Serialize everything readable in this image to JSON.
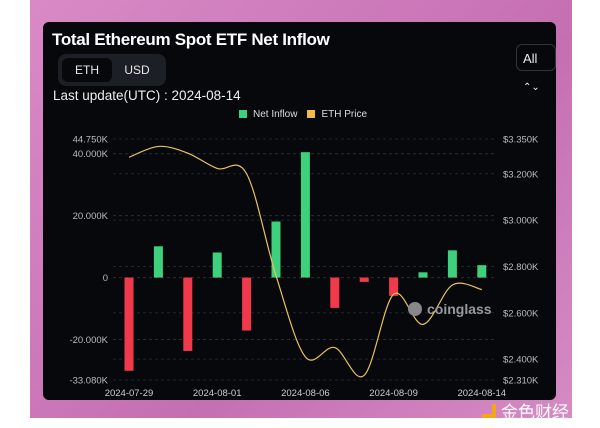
{
  "title": "Total Ethereum Spot ETF Net Inflow",
  "toggle": {
    "eth": "ETH",
    "usd": "USD",
    "selected": "ETH"
  },
  "last_update": "Last update(UTC) : 2024-08-14",
  "range_select": {
    "value": "All",
    "icon": "chevron-up-down-icon"
  },
  "watermark": {
    "chart": "coinglass",
    "site": "金色财经"
  },
  "colors": {
    "inflow_pos": "#3ed07c",
    "inflow_neg": "#f0394b",
    "price": "#e8c35a",
    "bg": "#07080b"
  },
  "chart_data": {
    "type": "bar",
    "title": "Total Ethereum Spot ETF Net Inflow",
    "legend": [
      {
        "name": "Net Inflow",
        "color": "#3ed07c"
      },
      {
        "name": "ETH Price",
        "color": "#f2b94a"
      }
    ],
    "legend_position": "top-center",
    "categories": [
      "2024-07-29",
      "2024-07-30",
      "2024-07-31",
      "2024-08-01",
      "2024-08-02",
      "2024-08-05",
      "2024-08-06",
      "2024-08-07",
      "2024-08-08",
      "2024-08-09",
      "2024-08-12",
      "2024-08-13",
      "2024-08-14"
    ],
    "x_tick_labels": [
      "2024-07-29",
      "2024-08-01",
      "2024-08-06",
      "2024-08-09",
      "2024-08-14"
    ],
    "x_tick_index": [
      0,
      3,
      6,
      9,
      12
    ],
    "series": [
      {
        "name": "Net Inflow",
        "type": "bar",
        "axis": "left",
        "unit": "K ETH",
        "values": [
          -30.1,
          10.1,
          -23.7,
          8.1,
          -17.1,
          18.1,
          40.5,
          -9.8,
          -1.4,
          -5.9,
          1.7,
          8.8,
          4.0
        ]
      },
      {
        "name": "ETH Price",
        "type": "line",
        "axis": "right",
        "unit": "K USD",
        "values": [
          3.271,
          3.318,
          3.289,
          3.223,
          3.2,
          2.76,
          2.41,
          2.45,
          2.33,
          2.68,
          2.55,
          2.72,
          2.7
        ]
      }
    ],
    "ylim_left": [
      -33.08,
      44.75
    ],
    "yticks_left": [
      {
        "v": 44.75,
        "label": "44.750K"
      },
      {
        "v": 40,
        "label": "40.000K"
      },
      {
        "v": 20,
        "label": "20.000K"
      },
      {
        "v": 0,
        "label": "0"
      },
      {
        "v": -20,
        "label": "-20.000K"
      },
      {
        "v": -33.08,
        "label": "-33.080K"
      }
    ],
    "ylim_right": [
      2.31,
      3.35
    ],
    "yticks_right": [
      {
        "v": 3.35,
        "label": "$3.350K"
      },
      {
        "v": 3.2,
        "label": "$3.200K"
      },
      {
        "v": 3.0,
        "label": "$3.000K"
      },
      {
        "v": 2.8,
        "label": "$2.800K"
      },
      {
        "v": 2.6,
        "label": "$2.600K"
      },
      {
        "v": 2.4,
        "label": "$2.400K"
      },
      {
        "v": 2.31,
        "label": "$2.310K"
      }
    ],
    "grid": true
  }
}
